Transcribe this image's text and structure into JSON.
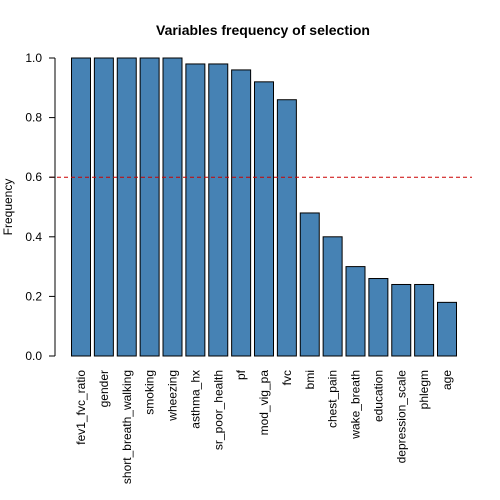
{
  "chart_data": {
    "type": "bar",
    "title": "Variables frequency of selection",
    "ylabel": "Frequency",
    "xlabel": "",
    "ylim": [
      0,
      1
    ],
    "yticks": [
      "0.0",
      "0.2",
      "0.4",
      "0.6",
      "0.8",
      "1.0"
    ],
    "ytick_values": [
      0,
      0.2,
      0.4,
      0.6,
      0.8,
      1.0
    ],
    "categories": [
      "fev1_fvc_ratio",
      "gender",
      "short_breath_walking",
      "smoking",
      "wheezing",
      "asthma_hx",
      "sr_poor_health",
      "pf",
      "mod_vig_pa",
      "fvc",
      "bmi",
      "chest_pain",
      "wake_breath",
      "education",
      "depression_scale",
      "phlegm",
      "age"
    ],
    "values": [
      1.0,
      1.0,
      1.0,
      1.0,
      1.0,
      0.98,
      0.98,
      0.96,
      0.92,
      0.86,
      0.48,
      0.4,
      0.3,
      0.26,
      0.24,
      0.24,
      0.18
    ],
    "reference_line": {
      "y": 0.6,
      "style": "dashed",
      "color": "#cc0000"
    },
    "bar_color": "#4682b4",
    "bar_border_color": "#000000",
    "grid": false,
    "legend": "none"
  }
}
